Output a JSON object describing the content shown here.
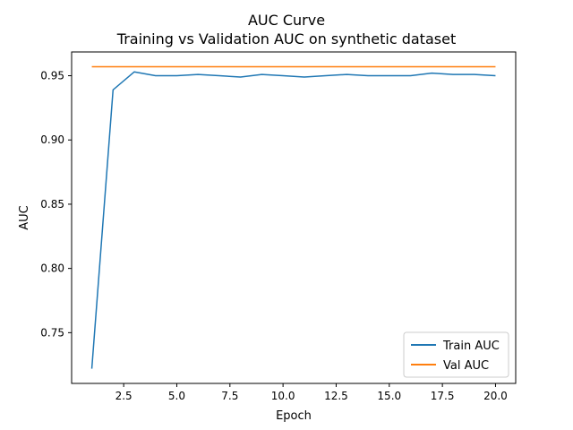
{
  "chart_data": {
    "type": "line",
    "title": "AUC Curve",
    "subtitle": "Training vs Validation AUC on synthetic dataset",
    "xlabel": "Epoch",
    "ylabel": "AUC",
    "xlim": [
      0.05,
      20.95
    ],
    "ylim": [
      0.7105,
      0.9685
    ],
    "xticks": [
      {
        "value": 2.5,
        "label": "2.5"
      },
      {
        "value": 5.0,
        "label": "5.0"
      },
      {
        "value": 7.5,
        "label": "7.5"
      },
      {
        "value": 10.0,
        "label": "10.0"
      },
      {
        "value": 12.5,
        "label": "12.5"
      },
      {
        "value": 15.0,
        "label": "15.0"
      },
      {
        "value": 17.5,
        "label": "17.5"
      },
      {
        "value": 20.0,
        "label": "20.0"
      }
    ],
    "yticks": [
      {
        "value": 0.75,
        "label": "0.75"
      },
      {
        "value": 0.8,
        "label": "0.80"
      },
      {
        "value": 0.85,
        "label": "0.85"
      },
      {
        "value": 0.9,
        "label": "0.90"
      },
      {
        "value": 0.95,
        "label": "0.95"
      }
    ],
    "grid": false,
    "legend_position": "bottom-right",
    "series": [
      {
        "name": "Train AUC",
        "color": "#1f77b4",
        "x": [
          1,
          2,
          3,
          4,
          5,
          6,
          7,
          8,
          9,
          10,
          11,
          12,
          13,
          14,
          15,
          16,
          17,
          18,
          19,
          20
        ],
        "y": [
          0.722,
          0.939,
          0.953,
          0.95,
          0.95,
          0.951,
          0.95,
          0.949,
          0.951,
          0.95,
          0.949,
          0.95,
          0.951,
          0.95,
          0.95,
          0.95,
          0.952,
          0.951,
          0.951,
          0.95
        ]
      },
      {
        "name": "Val AUC",
        "color": "#ff7f0e",
        "x": [
          1,
          2,
          3,
          4,
          5,
          6,
          7,
          8,
          9,
          10,
          11,
          12,
          13,
          14,
          15,
          16,
          17,
          18,
          19,
          20
        ],
        "y": [
          0.957,
          0.957,
          0.957,
          0.957,
          0.957,
          0.957,
          0.957,
          0.957,
          0.957,
          0.957,
          0.957,
          0.957,
          0.957,
          0.957,
          0.957,
          0.957,
          0.957,
          0.957,
          0.957,
          0.957
        ]
      }
    ]
  }
}
